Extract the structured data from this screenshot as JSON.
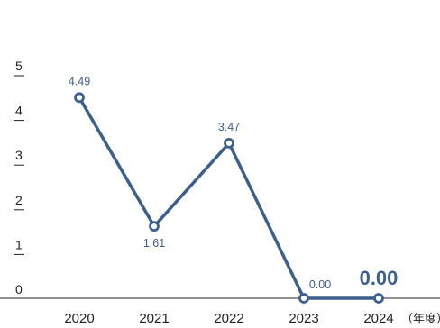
{
  "chart_data": {
    "type": "line",
    "categories": [
      "2020",
      "2021",
      "2022",
      "2023",
      "2024"
    ],
    "values": [
      4.49,
      1.61,
      3.47,
      0.0,
      0.0
    ],
    "data_labels": [
      "4.49",
      "1.61",
      "3.47",
      "0.00",
      "0.00"
    ],
    "highlight_index": 4,
    "y_ticks": [
      "0",
      "1",
      "2",
      "3",
      "4",
      "5"
    ],
    "ylim": [
      0,
      5
    ],
    "x_unit_label": "（年度）",
    "title": "",
    "xlabel": "",
    "ylabel": "",
    "grid": false,
    "colors": {
      "line": "#3d5f8c",
      "marker_fill": "#ffffff",
      "axis": "#222222",
      "label": "#3d5f8c"
    }
  }
}
